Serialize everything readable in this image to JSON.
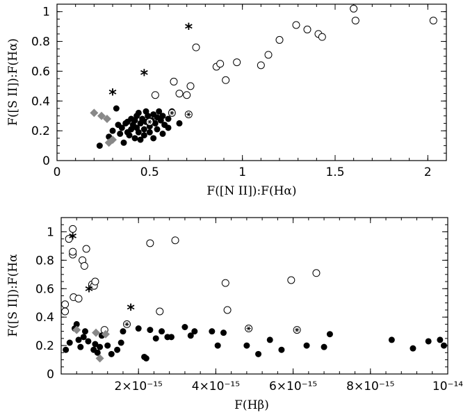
{
  "chart_data": [
    {
      "type": "scatter",
      "xlabel": "F([N II]):F(Hα)",
      "ylabel": "F([S II]):F(Hα)",
      "xlim": [
        0,
        2.1
      ],
      "ylim": [
        0,
        1.05
      ],
      "xticks": [
        0,
        0.5,
        1,
        1.5,
        2
      ],
      "xtick_labels": [
        "0",
        "0.5",
        "1",
        "1.5",
        "2"
      ],
      "yticks": [
        0,
        0.2,
        0.4,
        0.6,
        0.8,
        1
      ],
      "ytick_labels": [
        "0",
        "0.2",
        "0.4",
        "0.6",
        "0.8",
        "1"
      ],
      "grid": false,
      "series": [
        {
          "marker": "filled-circle",
          "points": [
            [
              0.23,
              0.1
            ],
            [
              0.28,
              0.16
            ],
            [
              0.3,
              0.2
            ],
            [
              0.33,
              0.24
            ],
            [
              0.35,
              0.22
            ],
            [
              0.37,
              0.25
            ],
            [
              0.38,
              0.19
            ],
            [
              0.39,
              0.17
            ],
            [
              0.4,
              0.21
            ],
            [
              0.41,
              0.24
            ],
            [
              0.42,
              0.27
            ],
            [
              0.43,
              0.22
            ],
            [
              0.44,
              0.19
            ],
            [
              0.45,
              0.25
            ],
            [
              0.46,
              0.28
            ],
            [
              0.47,
              0.21
            ],
            [
              0.48,
              0.26
            ],
            [
              0.49,
              0.3
            ],
            [
              0.5,
              0.23
            ],
            [
              0.51,
              0.27
            ],
            [
              0.52,
              0.31
            ],
            [
              0.53,
              0.25
            ],
            [
              0.54,
              0.29
            ],
            [
              0.55,
              0.33
            ],
            [
              0.56,
              0.27
            ],
            [
              0.57,
              0.3
            ],
            [
              0.45,
              0.14
            ],
            [
              0.47,
              0.17
            ],
            [
              0.5,
              0.19
            ],
            [
              0.52,
              0.15
            ],
            [
              0.32,
              0.35
            ],
            [
              0.43,
              0.3
            ],
            [
              0.36,
              0.12
            ],
            [
              0.58,
              0.24
            ],
            [
              0.6,
              0.28
            ],
            [
              0.62,
              0.33
            ],
            [
              0.4,
              0.28
            ],
            [
              0.44,
              0.32
            ],
            [
              0.48,
              0.33
            ],
            [
              0.34,
              0.18
            ],
            [
              0.38,
              0.26
            ],
            [
              0.42,
              0.15
            ],
            [
              0.54,
              0.21
            ],
            [
              0.57,
              0.18
            ],
            [
              0.6,
              0.22
            ],
            [
              0.66,
              0.25
            ]
          ]
        },
        {
          "marker": "open-circle",
          "points": [
            [
              0.53,
              0.44
            ],
            [
              0.63,
              0.53
            ],
            [
              0.66,
              0.45
            ],
            [
              0.7,
              0.44
            ],
            [
              0.72,
              0.5
            ],
            [
              0.75,
              0.76
            ],
            [
              0.86,
              0.63
            ],
            [
              0.88,
              0.65
            ],
            [
              0.91,
              0.54
            ],
            [
              0.97,
              0.66
            ],
            [
              1.1,
              0.64
            ],
            [
              1.14,
              0.71
            ],
            [
              1.2,
              0.81
            ],
            [
              1.29,
              0.91
            ],
            [
              1.35,
              0.88
            ],
            [
              1.41,
              0.85
            ],
            [
              1.43,
              0.83
            ],
            [
              1.6,
              1.02
            ],
            [
              1.61,
              0.94
            ],
            [
              2.03,
              0.94
            ]
          ]
        },
        {
          "marker": "circled-asterisk",
          "points": [
            [
              0.5,
              0.26
            ],
            [
              0.62,
              0.32
            ],
            [
              0.71,
              0.31
            ]
          ]
        },
        {
          "marker": "gray-diamond",
          "points": [
            [
              0.2,
              0.32
            ],
            [
              0.24,
              0.3
            ],
            [
              0.27,
              0.28
            ],
            [
              0.28,
              0.12
            ],
            [
              0.3,
              0.14
            ]
          ]
        },
        {
          "marker": "asterisk",
          "points": [
            [
              0.3,
              0.46
            ],
            [
              0.47,
              0.59
            ],
            [
              0.71,
              0.9
            ]
          ]
        }
      ]
    },
    {
      "type": "scatter",
      "xlabel": "F(Hβ)",
      "ylabel": "F([S II]):F(Hα",
      "xlim": [
        0,
        1e-14
      ],
      "ylim": [
        0,
        1.1
      ],
      "xticks": [
        2e-15,
        4e-15,
        6e-15,
        8e-15,
        1e-14
      ],
      "xtick_labels": [
        "2×10⁻¹⁵",
        "4×10⁻¹⁵",
        "6×10⁻¹⁵",
        "8×10⁻¹⁵",
        "10⁻¹⁴"
      ],
      "yticks": [
        0,
        0.2,
        0.4,
        0.6,
        0.8,
        1
      ],
      "ytick_labels": [
        "0",
        "0.2",
        "0.4",
        "0.6",
        "0.8",
        "1"
      ],
      "grid": false,
      "series": [
        {
          "marker": "filled-circle",
          "points": [
            [
              1.2e-16,
              0.17
            ],
            [
              2.2e-16,
              0.22
            ],
            [
              3.5e-16,
              0.32
            ],
            [
              4e-16,
              0.35
            ],
            [
              4.5e-16,
              0.24
            ],
            [
              5e-16,
              0.19
            ],
            [
              5.8e-16,
              0.26
            ],
            [
              6.2e-16,
              0.3
            ],
            [
              7e-16,
              0.23
            ],
            [
              8.4e-16,
              0.17
            ],
            [
              8.8e-16,
              0.21
            ],
            [
              9.4e-16,
              0.15
            ],
            [
              1e-15,
              0.19
            ],
            [
              1.05e-15,
              0.27
            ],
            [
              1.2e-15,
              0.2
            ],
            [
              1.3e-15,
              0.14
            ],
            [
              1.45e-15,
              0.17
            ],
            [
              1.55e-15,
              0.22
            ],
            [
              1.6e-15,
              0.3
            ],
            [
              2e-15,
              0.32
            ],
            [
              2.15e-15,
              0.12
            ],
            [
              2.2e-15,
              0.11
            ],
            [
              2.3e-15,
              0.31
            ],
            [
              2.45e-15,
              0.25
            ],
            [
              2.6e-15,
              0.3
            ],
            [
              2.75e-15,
              0.26
            ],
            [
              2.85e-15,
              0.26
            ],
            [
              3.2e-15,
              0.33
            ],
            [
              3.35e-15,
              0.27
            ],
            [
              3.45e-15,
              0.3
            ],
            [
              3.9e-15,
              0.3
            ],
            [
              4.05e-15,
              0.2
            ],
            [
              4.2e-15,
              0.29
            ],
            [
              4.8e-15,
              0.2
            ],
            [
              5.1e-15,
              0.14
            ],
            [
              5.4e-15,
              0.24
            ],
            [
              5.7e-15,
              0.17
            ],
            [
              6.35e-15,
              0.2
            ],
            [
              6.8e-15,
              0.19
            ],
            [
              6.95e-15,
              0.28
            ],
            [
              8.55e-15,
              0.24
            ],
            [
              9.1e-15,
              0.18
            ],
            [
              9.5e-15,
              0.23
            ],
            [
              9.8e-15,
              0.24
            ],
            [
              9.9e-15,
              0.2
            ]
          ]
        },
        {
          "marker": "open-circle",
          "points": [
            [
              1e-16,
              0.44
            ],
            [
              1e-16,
              0.49
            ],
            [
              2e-16,
              0.95
            ],
            [
              3e-16,
              1.02
            ],
            [
              3e-16,
              0.84
            ],
            [
              3e-16,
              0.86
            ],
            [
              3.2e-16,
              0.54
            ],
            [
              4.5e-16,
              0.53
            ],
            [
              5.5e-16,
              0.8
            ],
            [
              6e-16,
              0.76
            ],
            [
              6.5e-16,
              0.88
            ],
            [
              8e-16,
              0.63
            ],
            [
              8.5e-16,
              0.62
            ],
            [
              8.8e-16,
              0.65
            ],
            [
              1.12e-15,
              0.31
            ],
            [
              2.3e-15,
              0.92
            ],
            [
              2.55e-15,
              0.44
            ],
            [
              2.95e-15,
              0.94
            ],
            [
              4.25e-15,
              0.64
            ],
            [
              4.3e-15,
              0.45
            ],
            [
              5.95e-15,
              0.66
            ],
            [
              6.6e-15,
              0.71
            ]
          ]
        },
        {
          "marker": "circled-asterisk",
          "points": [
            [
              1.7e-15,
              0.35
            ],
            [
              4.85e-15,
              0.32
            ],
            [
              6.1e-15,
              0.31
            ]
          ]
        },
        {
          "marker": "gray-diamond",
          "points": [
            [
              4e-16,
              0.31
            ],
            [
              9e-16,
              0.29
            ],
            [
              1e-15,
              0.11
            ],
            [
              1.15e-15,
              0.28
            ]
          ]
        },
        {
          "marker": "asterisk",
          "points": [
            [
              3e-16,
              0.97
            ],
            [
              7.2e-16,
              0.6
            ],
            [
              1.8e-15,
              0.47
            ]
          ]
        }
      ]
    }
  ]
}
